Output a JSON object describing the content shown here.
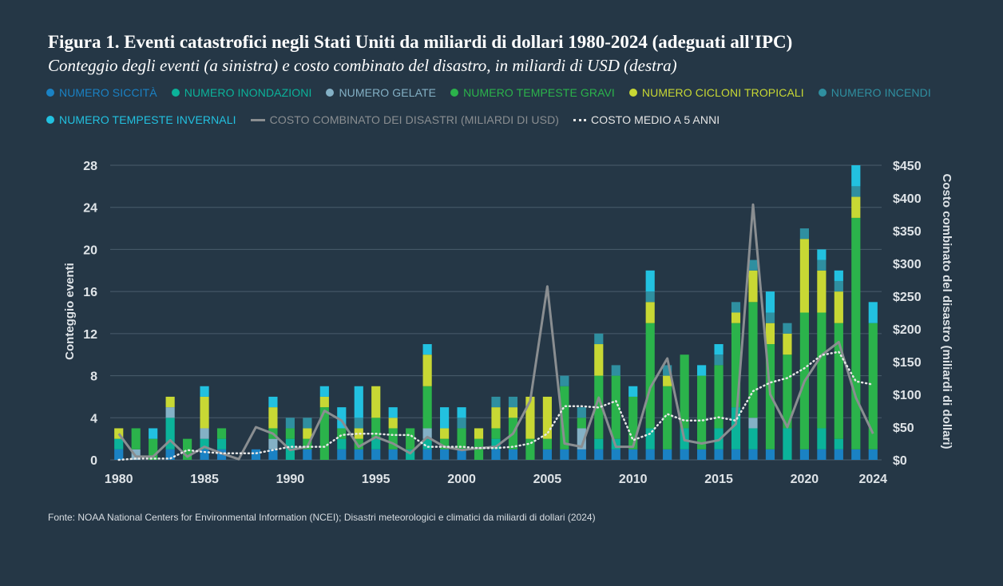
{
  "title": "Figura 1. Eventi catastrofici negli Stati Uniti da miliardi di dollari 1980-2024 (adeguati all'IPC)",
  "subtitle": "Conteggio degli eventi (a sinistra) e costo combinato del disastro, in miliardi di USD (destra)",
  "source": "Fonte: NOAA National Centers for Environmental Information (NCEI); Disastri meteorologici e climatici da miliardi di dollari (2024)",
  "legend": [
    {
      "label": "NUMERO SICCITÀ",
      "color": "#1a82c4",
      "kind": "dot"
    },
    {
      "label": "NUMERO INONDAZIONI",
      "color": "#0bb39a",
      "kind": "dot"
    },
    {
      "label": "NUMERO GELATE",
      "color": "#84b1c6",
      "kind": "dot"
    },
    {
      "label": "NUMERO TEMPESTE GRAVI",
      "color": "#2bb34b",
      "kind": "dot"
    },
    {
      "label": "NUMERO CICLONI TROPICALI",
      "color": "#c8d834",
      "kind": "dot"
    },
    {
      "label": "NUMERO INCENDI",
      "color": "#2f8fa0",
      "kind": "dot"
    },
    {
      "label": "NUMERO TEMPESTE INVERNALI",
      "color": "#22c1e0",
      "kind": "dot"
    },
    {
      "label": "COSTO COMBINATO DEI DISASTRI (MILIARDI DI USD)",
      "color": "#8a8e91",
      "kind": "line"
    },
    {
      "label": "COSTO MEDIO A 5 ANNI",
      "color": "#e6e6e6",
      "kind": "dots"
    }
  ],
  "chart_data": {
    "type": "bar",
    "stacked": true,
    "xlabel": "",
    "ylabel": "Conteggio eventi",
    "y2label": "Costo combinato del disastro (miliardi di dollari)",
    "ylim": [
      0,
      28
    ],
    "y2lim": [
      0,
      450
    ],
    "y_ticks": [
      "0",
      "4",
      "8",
      "12",
      "16",
      "20",
      "24",
      "28"
    ],
    "y2_ticks": [
      "$0",
      "$50",
      "$100",
      "$150",
      "$200",
      "$250",
      "$300",
      "$350",
      "$400",
      "$450"
    ],
    "x_ticks": [
      "1980",
      "1985",
      "1990",
      "1995",
      "2000",
      "2005",
      "2010",
      "2015",
      "2020",
      "2024"
    ],
    "categories": [
      "1980",
      "1981",
      "1982",
      "1983",
      "1984",
      "1985",
      "1986",
      "1987",
      "1988",
      "1989",
      "1990",
      "1991",
      "1992",
      "1993",
      "1994",
      "1995",
      "1996",
      "1997",
      "1998",
      "1999",
      "2000",
      "2001",
      "2002",
      "2003",
      "2004",
      "2005",
      "2006",
      "2007",
      "2008",
      "2009",
      "2010",
      "2011",
      "2012",
      "2013",
      "2014",
      "2015",
      "2016",
      "2017",
      "2018",
      "2019",
      "2020",
      "2021",
      "2022",
      "2023",
      "2024"
    ],
    "series": [
      {
        "name": "NUMERO SICCITÀ",
        "color": "#1a82c4",
        "values": [
          1,
          0,
          0,
          1,
          0,
          1,
          1,
          0,
          1,
          1,
          0,
          1,
          0,
          1,
          1,
          1,
          1,
          0,
          1,
          1,
          1,
          0,
          1,
          1,
          0,
          1,
          1,
          1,
          1,
          1,
          1,
          1,
          1,
          1,
          1,
          1,
          1,
          1,
          1,
          0,
          1,
          1,
          1,
          1,
          1
        ]
      },
      {
        "name": "NUMERO INONDAZIONI",
        "color": "#0bb39a",
        "values": [
          1,
          0,
          0,
          3,
          0,
          1,
          1,
          0,
          0,
          0,
          2,
          0,
          0,
          1,
          0,
          1,
          0,
          1,
          1,
          0,
          0,
          0,
          1,
          0,
          0,
          0,
          0,
          0,
          1,
          1,
          0,
          2,
          0,
          2,
          0,
          2,
          4,
          2,
          0,
          3,
          0,
          2,
          1,
          0,
          0
        ]
      },
      {
        "name": "NUMERO GELATE",
        "color": "#84b1c6",
        "values": [
          0,
          1,
          0,
          1,
          0,
          1,
          0,
          0,
          0,
          1,
          0,
          0,
          0,
          0,
          0,
          0,
          0,
          0,
          1,
          0,
          0,
          0,
          0,
          0,
          0,
          0,
          0,
          2,
          0,
          0,
          0,
          0,
          0,
          0,
          0,
          0,
          0,
          1,
          0,
          0,
          0,
          0,
          0,
          0,
          0
        ]
      },
      {
        "name": "NUMERO TEMPESTE GRAVI",
        "color": "#2bb34b",
        "values": [
          0,
          2,
          2,
          0,
          2,
          0,
          1,
          0,
          0,
          1,
          1,
          1,
          5,
          1,
          1,
          2,
          2,
          2,
          4,
          1,
          2,
          2,
          1,
          3,
          2,
          1,
          6,
          1,
          6,
          6,
          5,
          10,
          6,
          7,
          7,
          6,
          8,
          11,
          10,
          7,
          13,
          11,
          11,
          22,
          12
        ]
      },
      {
        "name": "NUMERO CICLONI TROPICALI",
        "color": "#c8d834",
        "values": [
          1,
          0,
          0,
          1,
          0,
          3,
          0,
          0,
          0,
          2,
          0,
          1,
          1,
          0,
          1,
          3,
          1,
          0,
          3,
          1,
          0,
          1,
          2,
          1,
          4,
          4,
          0,
          0,
          3,
          0,
          0,
          2,
          1,
          0,
          0,
          0,
          1,
          3,
          2,
          2,
          7,
          4,
          3,
          2,
          0
        ]
      },
      {
        "name": "NUMERO INCENDI",
        "color": "#2f8fa0",
        "values": [
          0,
          0,
          0,
          0,
          0,
          0,
          0,
          0,
          0,
          0,
          1,
          1,
          0,
          0,
          1,
          0,
          0,
          0,
          0,
          0,
          1,
          0,
          1,
          1,
          0,
          0,
          1,
          1,
          1,
          1,
          0,
          1,
          1,
          0,
          0,
          1,
          1,
          1,
          1,
          1,
          1,
          1,
          1,
          1,
          0
        ]
      },
      {
        "name": "NUMERO TEMPESTE INVERNALI",
        "color": "#22c1e0",
        "values": [
          0,
          0,
          1,
          0,
          0,
          1,
          0,
          0,
          0,
          1,
          0,
          0,
          1,
          2,
          3,
          0,
          1,
          0,
          1,
          2,
          1,
          0,
          0,
          0,
          0,
          0,
          0,
          0,
          0,
          0,
          1,
          2,
          0,
          0,
          1,
          1,
          0,
          0,
          2,
          0,
          0,
          1,
          1,
          2,
          2
        ]
      }
    ],
    "cost_line": {
      "name": "COSTO COMBINATO DEI DISASTRI (MILIARDI DI USD)",
      "color": "#8a8e91",
      "values": [
        40,
        5,
        5,
        30,
        5,
        20,
        10,
        1,
        50,
        40,
        15,
        20,
        75,
        60,
        20,
        35,
        25,
        10,
        35,
        20,
        15,
        18,
        20,
        40,
        90,
        265,
        25,
        20,
        95,
        20,
        20,
        110,
        155,
        30,
        25,
        30,
        55,
        390,
        100,
        50,
        120,
        160,
        180,
        95,
        40
      ]
    },
    "avg_line": {
      "name": "COSTO MEDIO A 5 ANNI",
      "color": "#e6e6e6",
      "values": [
        0,
        2,
        2,
        2,
        15,
        12,
        10,
        10,
        10,
        15,
        20,
        20,
        20,
        38,
        40,
        40,
        38,
        38,
        20,
        20,
        20,
        18,
        18,
        20,
        25,
        40,
        82,
        82,
        80,
        90,
        30,
        40,
        70,
        60,
        60,
        65,
        60,
        105,
        118,
        125,
        140,
        160,
        165,
        120,
        115
      ]
    }
  }
}
